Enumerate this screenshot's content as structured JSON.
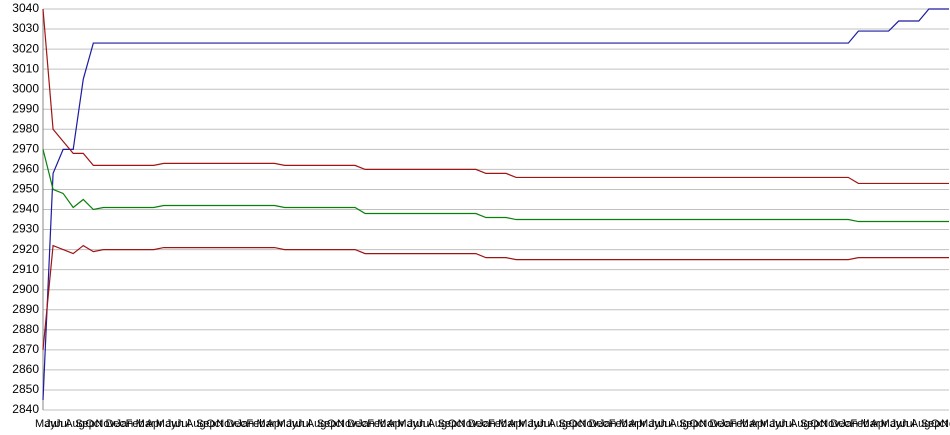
{
  "chart_data": {
    "type": "line",
    "categories": [
      "May",
      "Jun",
      "Jul",
      "Aug",
      "Sep",
      "Oct",
      "Nov",
      "Dec",
      "Jan",
      "Feb",
      "Mar",
      "Apr",
      "May",
      "Jun",
      "Jul",
      "Aug",
      "Sep",
      "Oct",
      "Nov",
      "Dec",
      "Jan",
      "Feb",
      "Mar",
      "Apr",
      "May",
      "Jun",
      "Jul",
      "Aug",
      "Sep",
      "Oct",
      "Nov",
      "Dec",
      "Jan",
      "Feb",
      "Mar",
      "Apr",
      "May",
      "Jun",
      "Jul",
      "Aug",
      "Sep",
      "Oct",
      "Nov",
      "Dec",
      "Jan",
      "Feb",
      "Mar",
      "Apr",
      "May",
      "Jun",
      "Jul",
      "Aug",
      "Sep",
      "Oct",
      "Nov",
      "Dec",
      "Jan",
      "Feb",
      "Mar",
      "Apr",
      "May",
      "Jun",
      "Jul",
      "Aug",
      "Sep",
      "Oct",
      "Nov",
      "Dec",
      "Jan",
      "Feb",
      "Mar",
      "Apr",
      "May",
      "Jun",
      "Jul",
      "Aug",
      "Sep",
      "Oct",
      "Nov",
      "Dec",
      "Jan",
      "Feb",
      "Mar",
      "Apr",
      "May",
      "Jun",
      "Jul",
      "Aug",
      "Sep",
      "Oct",
      "Nov"
    ],
    "series": [
      {
        "color": "#1c1ca0",
        "values": [
          2845,
          2958,
          2970,
          2970,
          3005,
          3023,
          3023,
          3023,
          3023,
          3023,
          3023,
          3023,
          3023,
          3023,
          3023,
          3023,
          3023,
          3023,
          3023,
          3023,
          3023,
          3023,
          3023,
          3023,
          3023,
          3023,
          3023,
          3023,
          3023,
          3023,
          3023,
          3023,
          3023,
          3023,
          3023,
          3023,
          3023,
          3023,
          3023,
          3023,
          3023,
          3023,
          3023,
          3023,
          3023,
          3023,
          3023,
          3023,
          3023,
          3023,
          3023,
          3023,
          3023,
          3023,
          3023,
          3023,
          3023,
          3023,
          3023,
          3023,
          3023,
          3023,
          3023,
          3023,
          3023,
          3023,
          3023,
          3023,
          3023,
          3023,
          3023,
          3023,
          3023,
          3023,
          3023,
          3023,
          3023,
          3023,
          3023,
          3023,
          3023,
          3029,
          3029,
          3029,
          3029,
          3034,
          3034,
          3034,
          3040,
          3040,
          3040
        ]
      },
      {
        "color": "#a01414",
        "values": [
          3040,
          2980,
          2974,
          2968,
          2968,
          2962,
          2962,
          2962,
          2962,
          2962,
          2962,
          2962,
          2963,
          2963,
          2963,
          2963,
          2963,
          2963,
          2963,
          2963,
          2963,
          2963,
          2963,
          2963,
          2962,
          2962,
          2962,
          2962,
          2962,
          2962,
          2962,
          2962,
          2960,
          2960,
          2960,
          2960,
          2960,
          2960,
          2960,
          2960,
          2960,
          2960,
          2960,
          2960,
          2958,
          2958,
          2958,
          2956,
          2956,
          2956,
          2956,
          2956,
          2956,
          2956,
          2956,
          2956,
          2956,
          2956,
          2956,
          2956,
          2956,
          2956,
          2956,
          2956,
          2956,
          2956,
          2956,
          2956,
          2956,
          2956,
          2956,
          2956,
          2956,
          2956,
          2956,
          2956,
          2956,
          2956,
          2956,
          2956,
          2956,
          2953,
          2953,
          2953,
          2953,
          2953,
          2953,
          2953,
          2953,
          2953,
          2953
        ]
      },
      {
        "color": "#0a800a",
        "values": [
          2970,
          2950,
          2948,
          2941,
          2945,
          2940,
          2941,
          2941,
          2941,
          2941,
          2941,
          2941,
          2942,
          2942,
          2942,
          2942,
          2942,
          2942,
          2942,
          2942,
          2942,
          2942,
          2942,
          2942,
          2941,
          2941,
          2941,
          2941,
          2941,
          2941,
          2941,
          2941,
          2938,
          2938,
          2938,
          2938,
          2938,
          2938,
          2938,
          2938,
          2938,
          2938,
          2938,
          2938,
          2936,
          2936,
          2936,
          2935,
          2935,
          2935,
          2935,
          2935,
          2935,
          2935,
          2935,
          2935,
          2935,
          2935,
          2935,
          2935,
          2935,
          2935,
          2935,
          2935,
          2935,
          2935,
          2935,
          2935,
          2935,
          2935,
          2935,
          2935,
          2935,
          2935,
          2935,
          2935,
          2935,
          2935,
          2935,
          2935,
          2935,
          2934,
          2934,
          2934,
          2934,
          2934,
          2934,
          2934,
          2934,
          2934,
          2934
        ]
      },
      {
        "color": "#a01414",
        "values": [
          2870,
          2922,
          2920,
          2918,
          2922,
          2919,
          2920,
          2920,
          2920,
          2920,
          2920,
          2920,
          2921,
          2921,
          2921,
          2921,
          2921,
          2921,
          2921,
          2921,
          2921,
          2921,
          2921,
          2921,
          2920,
          2920,
          2920,
          2920,
          2920,
          2920,
          2920,
          2920,
          2918,
          2918,
          2918,
          2918,
          2918,
          2918,
          2918,
          2918,
          2918,
          2918,
          2918,
          2918,
          2916,
          2916,
          2916,
          2915,
          2915,
          2915,
          2915,
          2915,
          2915,
          2915,
          2915,
          2915,
          2915,
          2915,
          2915,
          2915,
          2915,
          2915,
          2915,
          2915,
          2915,
          2915,
          2915,
          2915,
          2915,
          2915,
          2915,
          2915,
          2915,
          2915,
          2915,
          2915,
          2915,
          2915,
          2915,
          2915,
          2915,
          2916,
          2916,
          2916,
          2916,
          2916,
          2916,
          2916,
          2916,
          2916,
          2916
        ]
      }
    ],
    "ylim": [
      2840,
      3040
    ],
    "yticks": [
      2840,
      2850,
      2860,
      2870,
      2880,
      2890,
      2900,
      2910,
      2920,
      2930,
      2940,
      2950,
      2960,
      2970,
      2980,
      2990,
      3000,
      3010,
      3020,
      3030,
      3040
    ],
    "grid": true
  }
}
